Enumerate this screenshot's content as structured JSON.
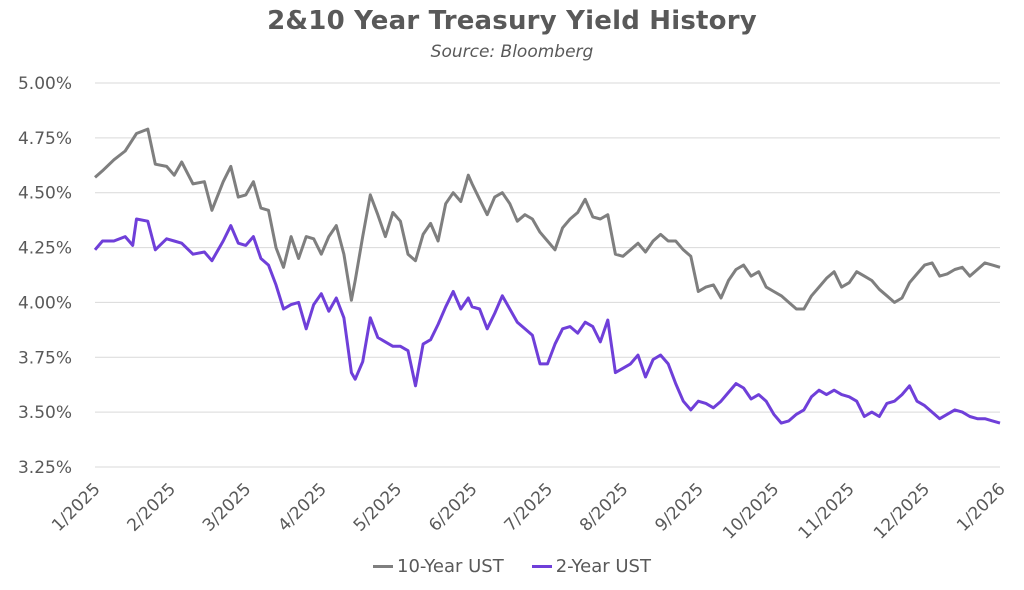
{
  "title": "2&10 Year Treasury Yield History",
  "subtitle": "Source: Bloomberg",
  "colors": {
    "ten_year": "#7f7f7f",
    "two_year": "#6f3fd9",
    "grid": "#d9d9d9"
  },
  "chart_data": {
    "type": "line",
    "title": "2&10 Year Treasury Yield History",
    "subtitle": "Source: Bloomberg",
    "xlabel": "",
    "ylabel": "",
    "x_tick_labels": [
      "1/2025",
      "2/2025",
      "3/2025",
      "4/2025",
      "5/2025",
      "6/2025",
      "7/2025",
      "8/2025",
      "9/2025",
      "10/2025",
      "11/2025",
      "12/2025",
      "1/2026"
    ],
    "y_tick_labels": [
      "3.25%",
      "3.50%",
      "3.75%",
      "4.00%",
      "4.25%",
      "4.50%",
      "4.75%",
      "5.00%"
    ],
    "ylim": [
      3.25,
      5.0
    ],
    "grid": "horizontal",
    "legend": "bottom",
    "series": [
      {
        "name": "10-Year UST",
        "color": "#7f7f7f",
        "points": [
          [
            0.0,
            4.57
          ],
          [
            0.1,
            4.6
          ],
          [
            0.25,
            4.65
          ],
          [
            0.4,
            4.69
          ],
          [
            0.55,
            4.77
          ],
          [
            0.7,
            4.79
          ],
          [
            0.8,
            4.63
          ],
          [
            0.95,
            4.62
          ],
          [
            1.05,
            4.58
          ],
          [
            1.15,
            4.64
          ],
          [
            1.3,
            4.54
          ],
          [
            1.45,
            4.55
          ],
          [
            1.55,
            4.42
          ],
          [
            1.7,
            4.55
          ],
          [
            1.8,
            4.62
          ],
          [
            1.9,
            4.48
          ],
          [
            2.0,
            4.49
          ],
          [
            2.1,
            4.55
          ],
          [
            2.2,
            4.43
          ],
          [
            2.3,
            4.42
          ],
          [
            2.4,
            4.25
          ],
          [
            2.5,
            4.16
          ],
          [
            2.6,
            4.3
          ],
          [
            2.7,
            4.2
          ],
          [
            2.8,
            4.3
          ],
          [
            2.9,
            4.29
          ],
          [
            3.0,
            4.22
          ],
          [
            3.1,
            4.3
          ],
          [
            3.2,
            4.35
          ],
          [
            3.3,
            4.22
          ],
          [
            3.4,
            4.01
          ],
          [
            3.45,
            4.1
          ],
          [
            3.55,
            4.3
          ],
          [
            3.65,
            4.49
          ],
          [
            3.75,
            4.4
          ],
          [
            3.85,
            4.3
          ],
          [
            3.95,
            4.41
          ],
          [
            4.05,
            4.37
          ],
          [
            4.15,
            4.22
          ],
          [
            4.25,
            4.19
          ],
          [
            4.35,
            4.31
          ],
          [
            4.45,
            4.36
          ],
          [
            4.55,
            4.28
          ],
          [
            4.65,
            4.45
          ],
          [
            4.75,
            4.5
          ],
          [
            4.85,
            4.46
          ],
          [
            4.95,
            4.58
          ],
          [
            5.0,
            4.54
          ],
          [
            5.1,
            4.47
          ],
          [
            5.2,
            4.4
          ],
          [
            5.3,
            4.48
          ],
          [
            5.4,
            4.5
          ],
          [
            5.5,
            4.45
          ],
          [
            5.6,
            4.37
          ],
          [
            5.7,
            4.4
          ],
          [
            5.8,
            4.38
          ],
          [
            5.9,
            4.32
          ],
          [
            6.0,
            4.28
          ],
          [
            6.1,
            4.24
          ],
          [
            6.2,
            4.34
          ],
          [
            6.3,
            4.38
          ],
          [
            6.4,
            4.41
          ],
          [
            6.5,
            4.47
          ],
          [
            6.6,
            4.39
          ],
          [
            6.7,
            4.38
          ],
          [
            6.8,
            4.4
          ],
          [
            6.9,
            4.22
          ],
          [
            7.0,
            4.21
          ],
          [
            7.1,
            4.24
          ],
          [
            7.2,
            4.27
          ],
          [
            7.3,
            4.23
          ],
          [
            7.4,
            4.28
          ],
          [
            7.5,
            4.31
          ],
          [
            7.6,
            4.28
          ],
          [
            7.7,
            4.28
          ],
          [
            7.8,
            4.24
          ],
          [
            7.9,
            4.21
          ],
          [
            8.0,
            4.05
          ],
          [
            8.1,
            4.07
          ],
          [
            8.2,
            4.08
          ],
          [
            8.3,
            4.02
          ],
          [
            8.4,
            4.1
          ],
          [
            8.5,
            4.15
          ],
          [
            8.6,
            4.17
          ],
          [
            8.7,
            4.12
          ],
          [
            8.8,
            4.14
          ],
          [
            8.9,
            4.07
          ],
          [
            9.0,
            4.05
          ],
          [
            9.1,
            4.03
          ],
          [
            9.2,
            4.0
          ],
          [
            9.3,
            3.97
          ],
          [
            9.4,
            3.97
          ],
          [
            9.5,
            4.03
          ],
          [
            9.6,
            4.07
          ],
          [
            9.7,
            4.11
          ],
          [
            9.8,
            4.14
          ],
          [
            9.9,
            4.07
          ],
          [
            10.0,
            4.09
          ],
          [
            10.1,
            4.14
          ],
          [
            10.2,
            4.12
          ],
          [
            10.3,
            4.1
          ],
          [
            10.4,
            4.06
          ],
          [
            10.5,
            4.03
          ],
          [
            10.6,
            4.0
          ],
          [
            10.7,
            4.02
          ],
          [
            10.8,
            4.09
          ],
          [
            10.9,
            4.13
          ],
          [
            11.0,
            4.17
          ],
          [
            11.1,
            4.18
          ],
          [
            11.2,
            4.12
          ],
          [
            11.3,
            4.13
          ],
          [
            11.4,
            4.15
          ],
          [
            11.5,
            4.16
          ],
          [
            11.6,
            4.12
          ],
          [
            11.7,
            4.15
          ],
          [
            11.8,
            4.18
          ],
          [
            11.9,
            4.17
          ],
          [
            12.0,
            4.16
          ]
        ]
      },
      {
        "name": "2-Year UST",
        "color": "#6f3fd9",
        "points": [
          [
            0.0,
            4.24
          ],
          [
            0.1,
            4.28
          ],
          [
            0.25,
            4.28
          ],
          [
            0.4,
            4.3
          ],
          [
            0.5,
            4.26
          ],
          [
            0.55,
            4.38
          ],
          [
            0.7,
            4.37
          ],
          [
            0.8,
            4.24
          ],
          [
            0.95,
            4.29
          ],
          [
            1.05,
            4.28
          ],
          [
            1.15,
            4.27
          ],
          [
            1.3,
            4.22
          ],
          [
            1.45,
            4.23
          ],
          [
            1.55,
            4.19
          ],
          [
            1.7,
            4.28
          ],
          [
            1.8,
            4.35
          ],
          [
            1.9,
            4.27
          ],
          [
            2.0,
            4.26
          ],
          [
            2.1,
            4.3
          ],
          [
            2.2,
            4.2
          ],
          [
            2.3,
            4.17
          ],
          [
            2.4,
            4.08
          ],
          [
            2.5,
            3.97
          ],
          [
            2.6,
            3.99
          ],
          [
            2.7,
            4.0
          ],
          [
            2.8,
            3.88
          ],
          [
            2.9,
            3.99
          ],
          [
            3.0,
            4.04
          ],
          [
            3.1,
            3.96
          ],
          [
            3.2,
            4.02
          ],
          [
            3.3,
            3.93
          ],
          [
            3.4,
            3.68
          ],
          [
            3.45,
            3.65
          ],
          [
            3.55,
            3.73
          ],
          [
            3.65,
            3.93
          ],
          [
            3.75,
            3.84
          ],
          [
            3.85,
            3.82
          ],
          [
            3.95,
            3.8
          ],
          [
            4.05,
            3.8
          ],
          [
            4.15,
            3.78
          ],
          [
            4.25,
            3.62
          ],
          [
            4.35,
            3.81
          ],
          [
            4.45,
            3.83
          ],
          [
            4.55,
            3.9
          ],
          [
            4.65,
            3.98
          ],
          [
            4.75,
            4.05
          ],
          [
            4.85,
            3.97
          ],
          [
            4.95,
            4.02
          ],
          [
            5.0,
            3.98
          ],
          [
            5.1,
            3.97
          ],
          [
            5.2,
            3.88
          ],
          [
            5.3,
            3.95
          ],
          [
            5.4,
            4.03
          ],
          [
            5.5,
            3.97
          ],
          [
            5.6,
            3.91
          ],
          [
            5.7,
            3.88
          ],
          [
            5.8,
            3.85
          ],
          [
            5.9,
            3.72
          ],
          [
            6.0,
            3.72
          ],
          [
            6.1,
            3.81
          ],
          [
            6.2,
            3.88
          ],
          [
            6.3,
            3.89
          ],
          [
            6.4,
            3.86
          ],
          [
            6.5,
            3.91
          ],
          [
            6.6,
            3.89
          ],
          [
            6.7,
            3.82
          ],
          [
            6.8,
            3.92
          ],
          [
            6.9,
            3.68
          ],
          [
            7.0,
            3.7
          ],
          [
            7.1,
            3.72
          ],
          [
            7.2,
            3.76
          ],
          [
            7.3,
            3.66
          ],
          [
            7.4,
            3.74
          ],
          [
            7.5,
            3.76
          ],
          [
            7.6,
            3.72
          ],
          [
            7.7,
            3.63
          ],
          [
            7.8,
            3.55
          ],
          [
            7.9,
            3.51
          ],
          [
            8.0,
            3.55
          ],
          [
            8.1,
            3.54
          ],
          [
            8.2,
            3.52
          ],
          [
            8.3,
            3.55
          ],
          [
            8.4,
            3.59
          ],
          [
            8.5,
            3.63
          ],
          [
            8.6,
            3.61
          ],
          [
            8.7,
            3.56
          ],
          [
            8.8,
            3.58
          ],
          [
            8.9,
            3.55
          ],
          [
            9.0,
            3.49
          ],
          [
            9.1,
            3.45
          ],
          [
            9.2,
            3.46
          ],
          [
            9.3,
            3.49
          ],
          [
            9.4,
            3.51
          ],
          [
            9.5,
            3.57
          ],
          [
            9.6,
            3.6
          ],
          [
            9.7,
            3.58
          ],
          [
            9.8,
            3.6
          ],
          [
            9.9,
            3.58
          ],
          [
            10.0,
            3.57
          ],
          [
            10.1,
            3.55
          ],
          [
            10.2,
            3.48
          ],
          [
            10.3,
            3.5
          ],
          [
            10.4,
            3.48
          ],
          [
            10.5,
            3.54
          ],
          [
            10.6,
            3.55
          ],
          [
            10.7,
            3.58
          ],
          [
            10.8,
            3.62
          ],
          [
            10.9,
            3.55
          ],
          [
            11.0,
            3.53
          ],
          [
            11.1,
            3.5
          ],
          [
            11.2,
            3.47
          ],
          [
            11.3,
            3.49
          ],
          [
            11.4,
            3.51
          ],
          [
            11.5,
            3.5
          ],
          [
            11.6,
            3.48
          ],
          [
            11.7,
            3.47
          ],
          [
            11.8,
            3.47
          ],
          [
            11.9,
            3.46
          ],
          [
            12.0,
            3.45
          ]
        ]
      }
    ]
  },
  "legend": {
    "items": [
      {
        "label": "10-Year UST",
        "color": "#7f7f7f"
      },
      {
        "label": "2-Year UST",
        "color": "#6f3fd9"
      }
    ]
  }
}
